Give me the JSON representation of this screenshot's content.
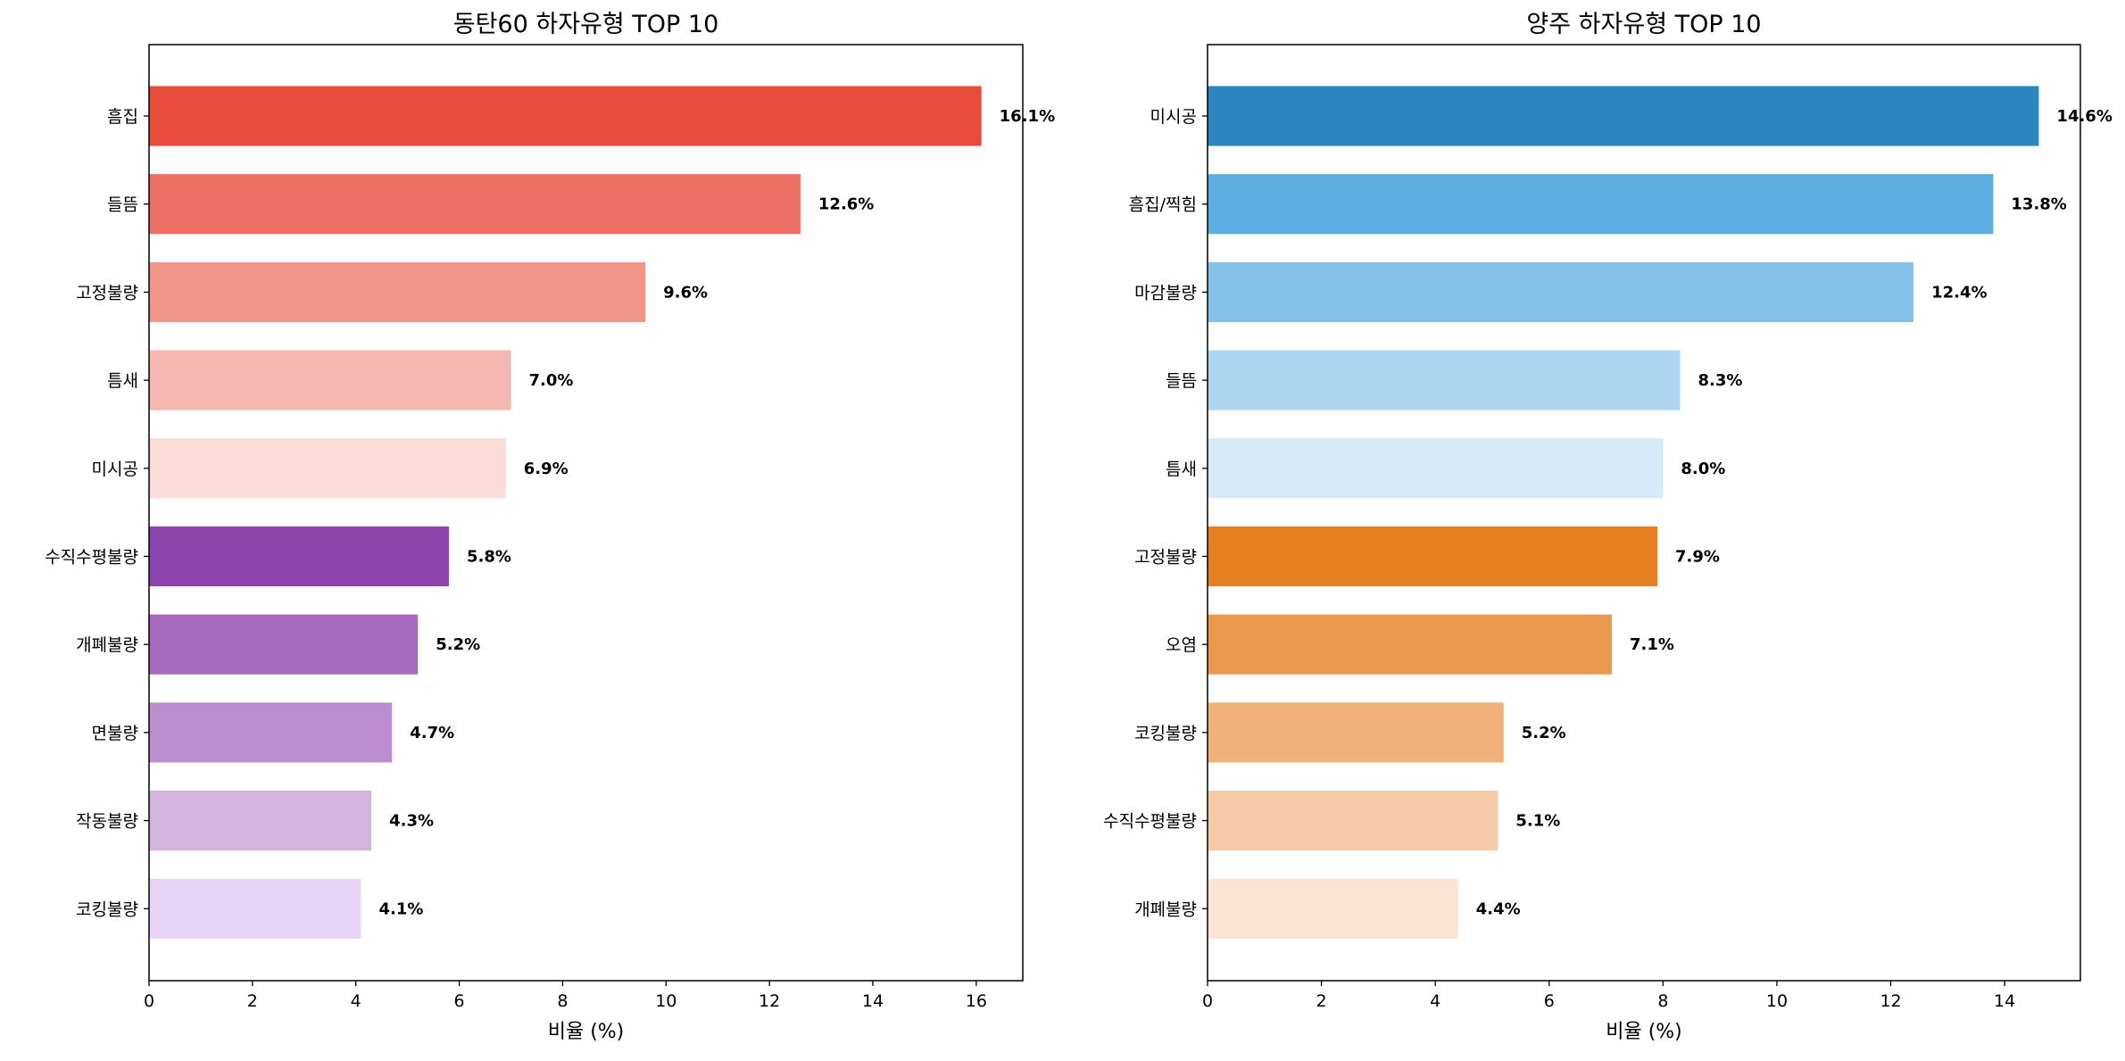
{
  "chart_data": [
    {
      "type": "bar",
      "orientation": "horizontal",
      "title": "동탄60 하자유형 TOP 10",
      "xlabel": "비율 (%)",
      "ylabel": "",
      "xlim": [
        0,
        16.9
      ],
      "xticks": [
        0,
        2,
        4,
        6,
        8,
        10,
        12,
        14,
        16
      ],
      "grid": false,
      "categories": [
        "흠집",
        "들뜸",
        "고정불량",
        "틈새",
        "미시공",
        "수직수평불량",
        "개폐불량",
        "면불량",
        "작동불량",
        "코킹불량"
      ],
      "values": [
        16.1,
        12.6,
        9.6,
        7.0,
        6.9,
        5.8,
        5.2,
        4.7,
        4.3,
        4.1
      ],
      "labels": [
        "16.1%",
        "12.6%",
        "9.6%",
        "7.0%",
        "6.9%",
        "5.8%",
        "5.2%",
        "4.7%",
        "4.3%",
        "4.1%"
      ],
      "colors": [
        "#e74c3c",
        "#ec7063",
        "#f1948a",
        "#f5b7b1",
        "#fadbd8",
        "#8e44ad",
        "#a569bd",
        "#bb8fce",
        "#d2b4de",
        "#e8d5f5"
      ]
    },
    {
      "type": "bar",
      "orientation": "horizontal",
      "title": "양주 하자유형 TOP 10",
      "xlabel": "비율 (%)",
      "ylabel": "",
      "xlim": [
        0,
        15.33
      ],
      "xticks": [
        0,
        2,
        4,
        6,
        8,
        10,
        12,
        14
      ],
      "grid": false,
      "categories": [
        "미시공",
        "흠집/찍힘",
        "마감불량",
        "들뜸",
        "틈새",
        "고정불량",
        "오염",
        "코킹불량",
        "수직수평불량",
        "개폐불량"
      ],
      "values": [
        14.6,
        13.8,
        12.4,
        8.3,
        8.0,
        7.9,
        7.1,
        5.2,
        5.1,
        4.4
      ],
      "labels": [
        "14.6%",
        "13.8%",
        "12.4%",
        "8.3%",
        "8.0%",
        "7.9%",
        "7.1%",
        "5.2%",
        "5.1%",
        "4.4%"
      ],
      "colors": [
        "#2e86c1",
        "#5dade2",
        "#85c1e9",
        "#aed6f1",
        "#d6eaf8",
        "#e67e22",
        "#eb984e",
        "#f0b27a",
        "#f5cba7",
        "#fae5d3"
      ]
    }
  ]
}
